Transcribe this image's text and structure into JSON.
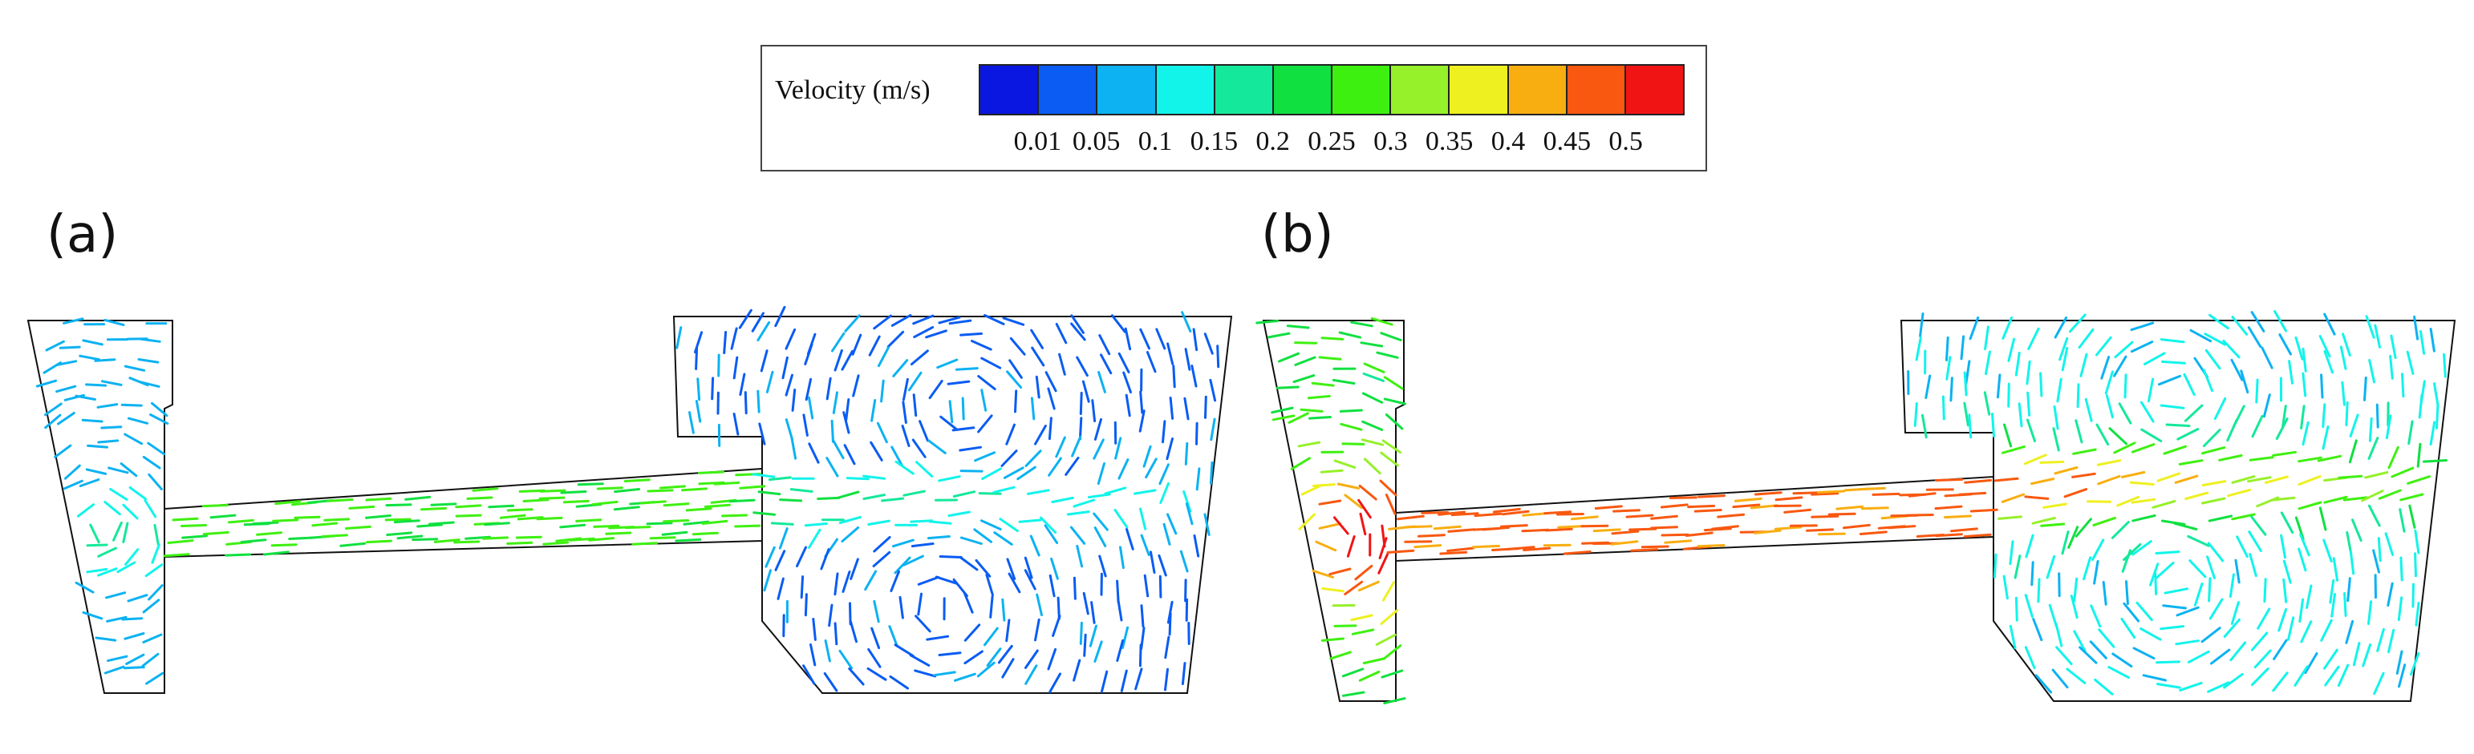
{
  "legend": {
    "title": "Velocity (m/s)",
    "tick_labels": [
      "0.01",
      "0.05",
      "0.1",
      "0.15",
      "0.2",
      "0.25",
      "0.3",
      "0.35",
      "0.4",
      "0.45",
      "0.5"
    ],
    "colors": [
      "#0a17e0",
      "#0a5cf2",
      "#0cb2f2",
      "#12f4ea",
      "#14e89a",
      "#10e040",
      "#3ef010",
      "#96f02a",
      "#eef020",
      "#f8ae10",
      "#f85810",
      "#f01414"
    ]
  },
  "panels": [
    {
      "label": "(a)",
      "regime": "low-velocity",
      "nozzle_velocity_mps": 0.28,
      "ladle_velocity_mps": 0.06
    },
    {
      "label": "(b)",
      "regime": "high-velocity",
      "nozzle_velocity_mps": 0.5,
      "ladle_velocity_mps": 0.22
    }
  ]
}
